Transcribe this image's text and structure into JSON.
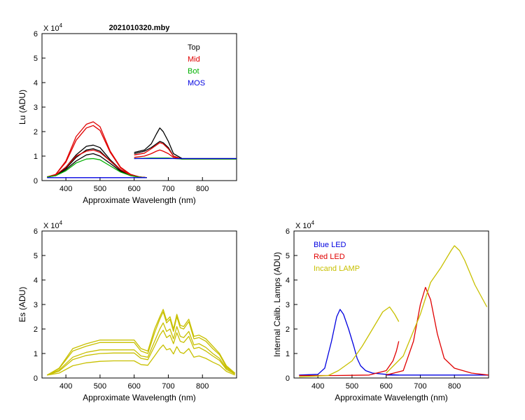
{
  "chart_data": [
    {
      "id": "lu",
      "type": "line",
      "title": "2021010320.mby",
      "xlabel": "Approximate Wavelength (nm)",
      "ylabel": "Lu (ADU)",
      "multiplier": "X 10",
      "exponent": "4",
      "xlim": [
        330,
        900
      ],
      "ylim": [
        0,
        6
      ],
      "xticks": [
        400,
        500,
        600,
        700,
        800
      ],
      "yticks": [
        0,
        1,
        2,
        3,
        4,
        5,
        6
      ],
      "legend": [
        {
          "label": "Top",
          "color": "#000000"
        },
        {
          "label": "Mid",
          "color": "#e00000"
        },
        {
          "label": "Bot",
          "color": "#00b000"
        },
        {
          "label": "MOS",
          "color": "#0000e0"
        }
      ],
      "series": [
        {
          "name": "Top",
          "color": "#000000",
          "x": [
            345,
            370,
            400,
            430,
            460,
            480,
            500,
            530,
            560,
            590,
            615,
            637
          ],
          "y": [
            0.15,
            0.22,
            0.55,
            1.05,
            1.4,
            1.45,
            1.35,
            0.85,
            0.45,
            0.25,
            0.15,
            0.12
          ]
        },
        {
          "name": "Top",
          "color": "#000000",
          "x": [
            345,
            370,
            400,
            430,
            460,
            480,
            500,
            530,
            560,
            590,
            615,
            637
          ],
          "y": [
            0.15,
            0.22,
            0.5,
            0.95,
            1.25,
            1.3,
            1.2,
            0.8,
            0.42,
            0.22,
            0.14,
            0.12
          ]
        },
        {
          "name": "Top",
          "color": "#000000",
          "x": [
            345,
            370,
            400,
            430,
            460,
            480,
            500,
            530,
            560,
            590,
            615,
            637
          ],
          "y": [
            0.15,
            0.2,
            0.45,
            0.8,
            1.05,
            1.1,
            1.0,
            0.7,
            0.38,
            0.2,
            0.14,
            0.12
          ]
        },
        {
          "name": "Mid",
          "color": "#e00000",
          "x": [
            345,
            370,
            400,
            430,
            460,
            480,
            500,
            530,
            560,
            590,
            615,
            637
          ],
          "y": [
            0.15,
            0.25,
            0.8,
            1.8,
            2.3,
            2.4,
            2.2,
            1.2,
            0.55,
            0.25,
            0.15,
            0.12
          ]
        },
        {
          "name": "Mid",
          "color": "#e00000",
          "x": [
            345,
            370,
            400,
            430,
            460,
            480,
            500,
            530,
            560,
            590,
            615,
            637
          ],
          "y": [
            0.15,
            0.25,
            0.75,
            1.65,
            2.15,
            2.25,
            2.05,
            1.15,
            0.52,
            0.24,
            0.15,
            0.12
          ]
        },
        {
          "name": "Mid",
          "color": "#e00000",
          "x": [
            345,
            370,
            400,
            430,
            460,
            480,
            500,
            530,
            560,
            590,
            615,
            637
          ],
          "y": [
            0.15,
            0.22,
            0.55,
            1.0,
            1.2,
            1.25,
            1.15,
            0.8,
            0.45,
            0.22,
            0.14,
            0.12
          ]
        },
        {
          "name": "Bot",
          "color": "#00b000",
          "x": [
            345,
            370,
            400,
            430,
            460,
            480,
            500,
            530,
            560,
            590,
            615,
            637
          ],
          "y": [
            0.15,
            0.2,
            0.4,
            0.72,
            0.88,
            0.9,
            0.85,
            0.6,
            0.35,
            0.2,
            0.14,
            0.12
          ]
        },
        {
          "name": "MOS",
          "color": "#0000e0",
          "x": [
            345,
            400,
            500,
            600,
            637
          ],
          "y": [
            0.12,
            0.12,
            0.12,
            0.12,
            0.12
          ]
        },
        {
          "name": "Top",
          "color": "#000000",
          "x": [
            600,
            630,
            650,
            665,
            675,
            685,
            700,
            715,
            740,
            900
          ],
          "y": [
            1.15,
            1.25,
            1.5,
            1.9,
            2.15,
            2.0,
            1.6,
            1.1,
            0.9,
            0.9
          ]
        },
        {
          "name": "Top",
          "color": "#000000",
          "x": [
            600,
            630,
            650,
            665,
            675,
            685,
            700,
            715,
            740,
            900
          ],
          "y": [
            1.1,
            1.2,
            1.35,
            1.5,
            1.6,
            1.55,
            1.35,
            1.0,
            0.88,
            0.88
          ]
        },
        {
          "name": "Mid",
          "color": "#e00000",
          "x": [
            600,
            630,
            650,
            665,
            675,
            685,
            700,
            715,
            740,
            900
          ],
          "y": [
            1.05,
            1.12,
            1.3,
            1.45,
            1.55,
            1.5,
            1.3,
            1.0,
            0.88,
            0.88
          ]
        },
        {
          "name": "Mid",
          "color": "#e00000",
          "x": [
            600,
            630,
            650,
            665,
            675,
            685,
            700,
            715,
            740,
            900
          ],
          "y": [
            0.95,
            1.0,
            1.1,
            1.2,
            1.25,
            1.2,
            1.1,
            0.95,
            0.88,
            0.88
          ]
        },
        {
          "name": "Bot",
          "color": "#00b000",
          "x": [
            600,
            650,
            700,
            740,
            900
          ],
          "y": [
            0.9,
            0.92,
            0.92,
            0.88,
            0.88
          ]
        },
        {
          "name": "MOS",
          "color": "#0000e0",
          "x": [
            600,
            700,
            800,
            900
          ],
          "y": [
            0.9,
            0.9,
            0.9,
            0.9
          ]
        }
      ]
    },
    {
      "id": "es",
      "type": "line",
      "title": "",
      "xlabel": "Approximate Wavelength (nm)",
      "ylabel": "Es  (ADU)",
      "multiplier": "X 10",
      "exponent": "4",
      "xlim": [
        330,
        900
      ],
      "ylim": [
        0,
        6
      ],
      "xticks": [
        400,
        500,
        600,
        700,
        800
      ],
      "yticks": [
        0,
        1,
        2,
        3,
        4,
        5,
        6
      ],
      "legend": [],
      "series": [
        {
          "name": "Es",
          "color": "#c8c000",
          "x": [
            345,
            380,
            420,
            460,
            500,
            540,
            580,
            600,
            620,
            640,
            660,
            675,
            685,
            695,
            705,
            715,
            725,
            735,
            745,
            760,
            775,
            790,
            810,
            830,
            850,
            870,
            895
          ],
          "y": [
            0.12,
            0.4,
            1.2,
            1.4,
            1.55,
            1.55,
            1.55,
            1.55,
            1.2,
            1.1,
            2.0,
            2.5,
            2.8,
            2.35,
            2.5,
            2.0,
            2.6,
            2.15,
            2.1,
            2.4,
            1.7,
            1.75,
            1.6,
            1.3,
            1.0,
            0.5,
            0.2
          ]
        },
        {
          "name": "Es",
          "color": "#c8c000",
          "x": [
            345,
            380,
            420,
            460,
            500,
            540,
            580,
            600,
            620,
            640,
            660,
            675,
            685,
            695,
            705,
            715,
            725,
            735,
            745,
            760,
            775,
            790,
            810,
            830,
            850,
            870,
            895
          ],
          "y": [
            0.12,
            0.38,
            1.1,
            1.3,
            1.45,
            1.45,
            1.45,
            1.45,
            1.1,
            1.0,
            1.85,
            2.4,
            2.7,
            2.25,
            2.4,
            1.9,
            2.5,
            2.05,
            2.0,
            2.3,
            1.6,
            1.65,
            1.5,
            1.2,
            0.95,
            0.45,
            0.2
          ]
        },
        {
          "name": "Es",
          "color": "#c8c000",
          "x": [
            345,
            380,
            420,
            460,
            500,
            540,
            580,
            600,
            620,
            640,
            660,
            675,
            685,
            695,
            705,
            715,
            725,
            735,
            745,
            760,
            775,
            790,
            810,
            830,
            850,
            870,
            895
          ],
          "y": [
            0.12,
            0.32,
            0.85,
            1.05,
            1.15,
            1.15,
            1.15,
            1.15,
            0.9,
            0.85,
            1.5,
            2.0,
            2.25,
            1.9,
            2.0,
            1.6,
            2.1,
            1.7,
            1.65,
            1.9,
            1.35,
            1.4,
            1.25,
            1.0,
            0.8,
            0.4,
            0.18
          ]
        },
        {
          "name": "Es",
          "color": "#c8c000",
          "x": [
            345,
            380,
            420,
            460,
            500,
            540,
            580,
            600,
            620,
            640,
            660,
            675,
            685,
            695,
            705,
            715,
            725,
            735,
            745,
            760,
            775,
            790,
            810,
            830,
            850,
            870,
            895
          ],
          "y": [
            0.12,
            0.28,
            0.75,
            0.92,
            1.0,
            1.02,
            1.02,
            1.02,
            0.8,
            0.75,
            1.3,
            1.75,
            1.95,
            1.65,
            1.75,
            1.4,
            1.85,
            1.5,
            1.45,
            1.7,
            1.2,
            1.25,
            1.1,
            0.9,
            0.72,
            0.35,
            0.16
          ]
        },
        {
          "name": "Es",
          "color": "#c8c000",
          "x": [
            345,
            380,
            420,
            460,
            500,
            540,
            580,
            600,
            620,
            640,
            660,
            675,
            685,
            695,
            705,
            715,
            725,
            735,
            745,
            760,
            775,
            790,
            810,
            830,
            850,
            870,
            895
          ],
          "y": [
            0.12,
            0.2,
            0.5,
            0.62,
            0.68,
            0.7,
            0.7,
            0.7,
            0.55,
            0.52,
            0.9,
            1.2,
            1.35,
            1.15,
            1.2,
            0.98,
            1.28,
            1.05,
            1.0,
            1.2,
            0.85,
            0.9,
            0.8,
            0.65,
            0.52,
            0.27,
            0.12
          ]
        }
      ]
    },
    {
      "id": "lamps",
      "type": "line",
      "title": "",
      "xlabel": "Approximate Wavelength (nm)",
      "ylabel": "Internal Calib. Lamps  (ADU)",
      "multiplier": "X 10",
      "exponent": "4",
      "xlim": [
        330,
        900
      ],
      "ylim": [
        0,
        6
      ],
      "xticks": [
        400,
        500,
        600,
        700,
        800
      ],
      "yticks": [
        0,
        1,
        2,
        3,
        4,
        5,
        6
      ],
      "legend": [
        {
          "label": "Blue LED",
          "color": "#0000e0"
        },
        {
          "label": "Red LED",
          "color": "#e00000"
        },
        {
          "label": "Incand LAMP",
          "color": "#c8c000"
        }
      ],
      "series": [
        {
          "name": "Blue LED",
          "color": "#0000e0",
          "x": [
            345,
            400,
            420,
            440,
            455,
            465,
            475,
            490,
            505,
            515,
            525,
            540,
            560,
            600,
            637
          ],
          "y": [
            0.12,
            0.15,
            0.4,
            1.5,
            2.5,
            2.8,
            2.6,
            2.0,
            1.3,
            0.8,
            0.5,
            0.3,
            0.2,
            0.15,
            0.12
          ]
        },
        {
          "name": "Blue LED",
          "color": "#0000e0",
          "x": [
            600,
            700,
            800,
            900
          ],
          "y": [
            0.12,
            0.12,
            0.12,
            0.12
          ]
        },
        {
          "name": "Red LED",
          "color": "#e00000",
          "x": [
            345,
            450,
            550,
            600,
            620,
            630,
            637
          ],
          "y": [
            0.1,
            0.1,
            0.12,
            0.3,
            0.7,
            1.1,
            1.5
          ]
        },
        {
          "name": "Red LED",
          "color": "#e00000",
          "x": [
            600,
            650,
            680,
            700,
            715,
            730,
            750,
            770,
            800,
            850,
            900
          ],
          "y": [
            0.12,
            0.3,
            1.5,
            3.0,
            3.7,
            3.2,
            1.8,
            0.8,
            0.4,
            0.2,
            0.12
          ]
        },
        {
          "name": "Incand LAMP",
          "color": "#c8c000",
          "x": [
            345,
            430,
            460,
            500,
            530,
            560,
            590,
            610,
            625,
            637
          ],
          "y": [
            0.05,
            0.1,
            0.3,
            0.7,
            1.3,
            2.0,
            2.7,
            2.9,
            2.6,
            2.3
          ]
        },
        {
          "name": "Incand LAMP",
          "color": "#c8c000",
          "x": [
            600,
            650,
            700,
            730,
            760,
            790,
            800,
            815,
            830,
            860,
            895
          ],
          "y": [
            0.2,
            0.9,
            2.6,
            3.9,
            4.5,
            5.2,
            5.4,
            5.2,
            4.8,
            3.8,
            2.9
          ]
        }
      ]
    }
  ]
}
